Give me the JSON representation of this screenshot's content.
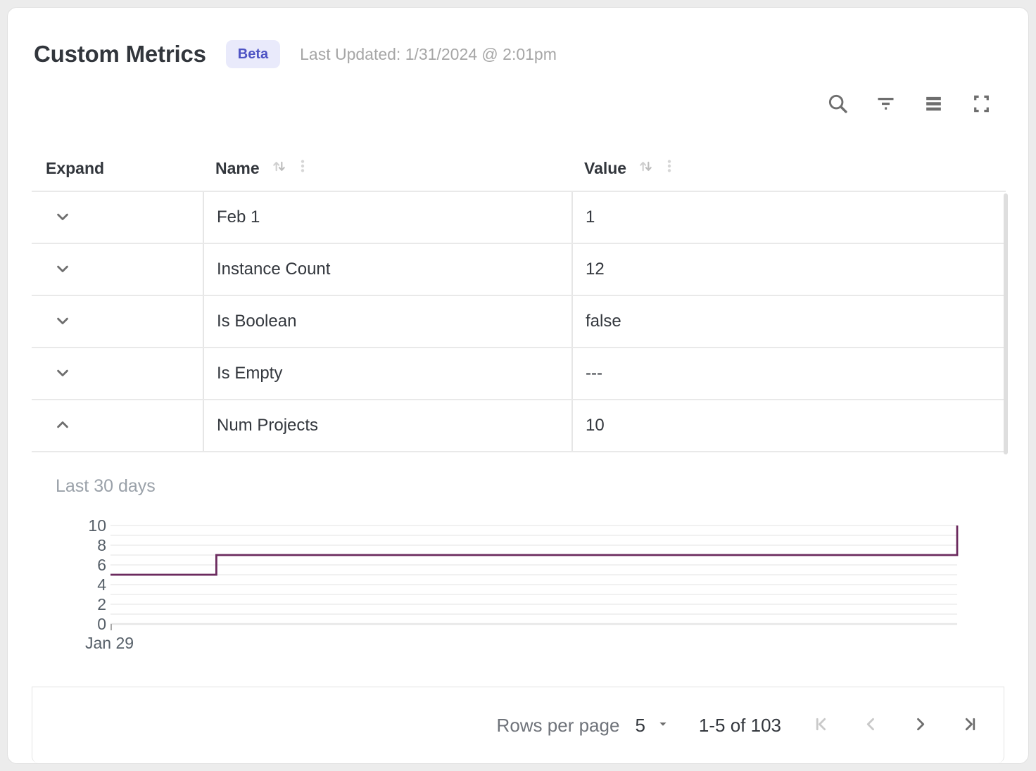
{
  "header": {
    "title": "Custom Metrics",
    "badge": "Beta",
    "last_updated": "Last Updated: 1/31/2024 @ 2:01pm"
  },
  "toolbar": {
    "icons": [
      "search-icon",
      "filter-icon",
      "density-icon",
      "fullscreen-icon"
    ]
  },
  "table": {
    "columns": [
      {
        "label": "Expand",
        "sortable": false
      },
      {
        "label": "Name",
        "sortable": true
      },
      {
        "label": "Value",
        "sortable": true
      }
    ],
    "rows": [
      {
        "name": "Feb 1",
        "value": "1",
        "expanded": false
      },
      {
        "name": "Instance Count",
        "value": "12",
        "expanded": false
      },
      {
        "name": "Is Boolean",
        "value": "false",
        "expanded": false
      },
      {
        "name": "Is Empty",
        "value": "---",
        "expanded": false
      },
      {
        "name": "Num Projects",
        "value": "10",
        "expanded": true
      }
    ]
  },
  "chart_data": {
    "type": "line",
    "step": true,
    "title": "Last 30 days",
    "x_start_label": "Jan 29",
    "ylim": [
      0,
      10
    ],
    "yticks": [
      0,
      2,
      4,
      6,
      8,
      10
    ],
    "ygrid_step": 1,
    "grid": "on",
    "legend": "none",
    "series": [
      {
        "name": "Num Projects",
        "points": [
          {
            "x": 0.0,
            "y": 5
          },
          {
            "x": 0.125,
            "y": 5
          },
          {
            "x": 0.125,
            "y": 7
          },
          {
            "x": 1.0,
            "y": 7
          },
          {
            "x": 1.0,
            "y": 10
          }
        ]
      }
    ],
    "line_color": "#6b2a5e",
    "gridline_color": "#f1f1f1",
    "axis_line_color": "#e7e7e7"
  },
  "pagination": {
    "rows_per_page_label": "Rows per page",
    "rows_per_page_value": "5",
    "range_label": "1-5 of 103"
  },
  "colors": {
    "badge_bg": "#e9eafb",
    "badge_text": "#4d53c4",
    "icon_gray": "#6e6e6e",
    "disabled_icon_gray": "#c9c9c9"
  }
}
